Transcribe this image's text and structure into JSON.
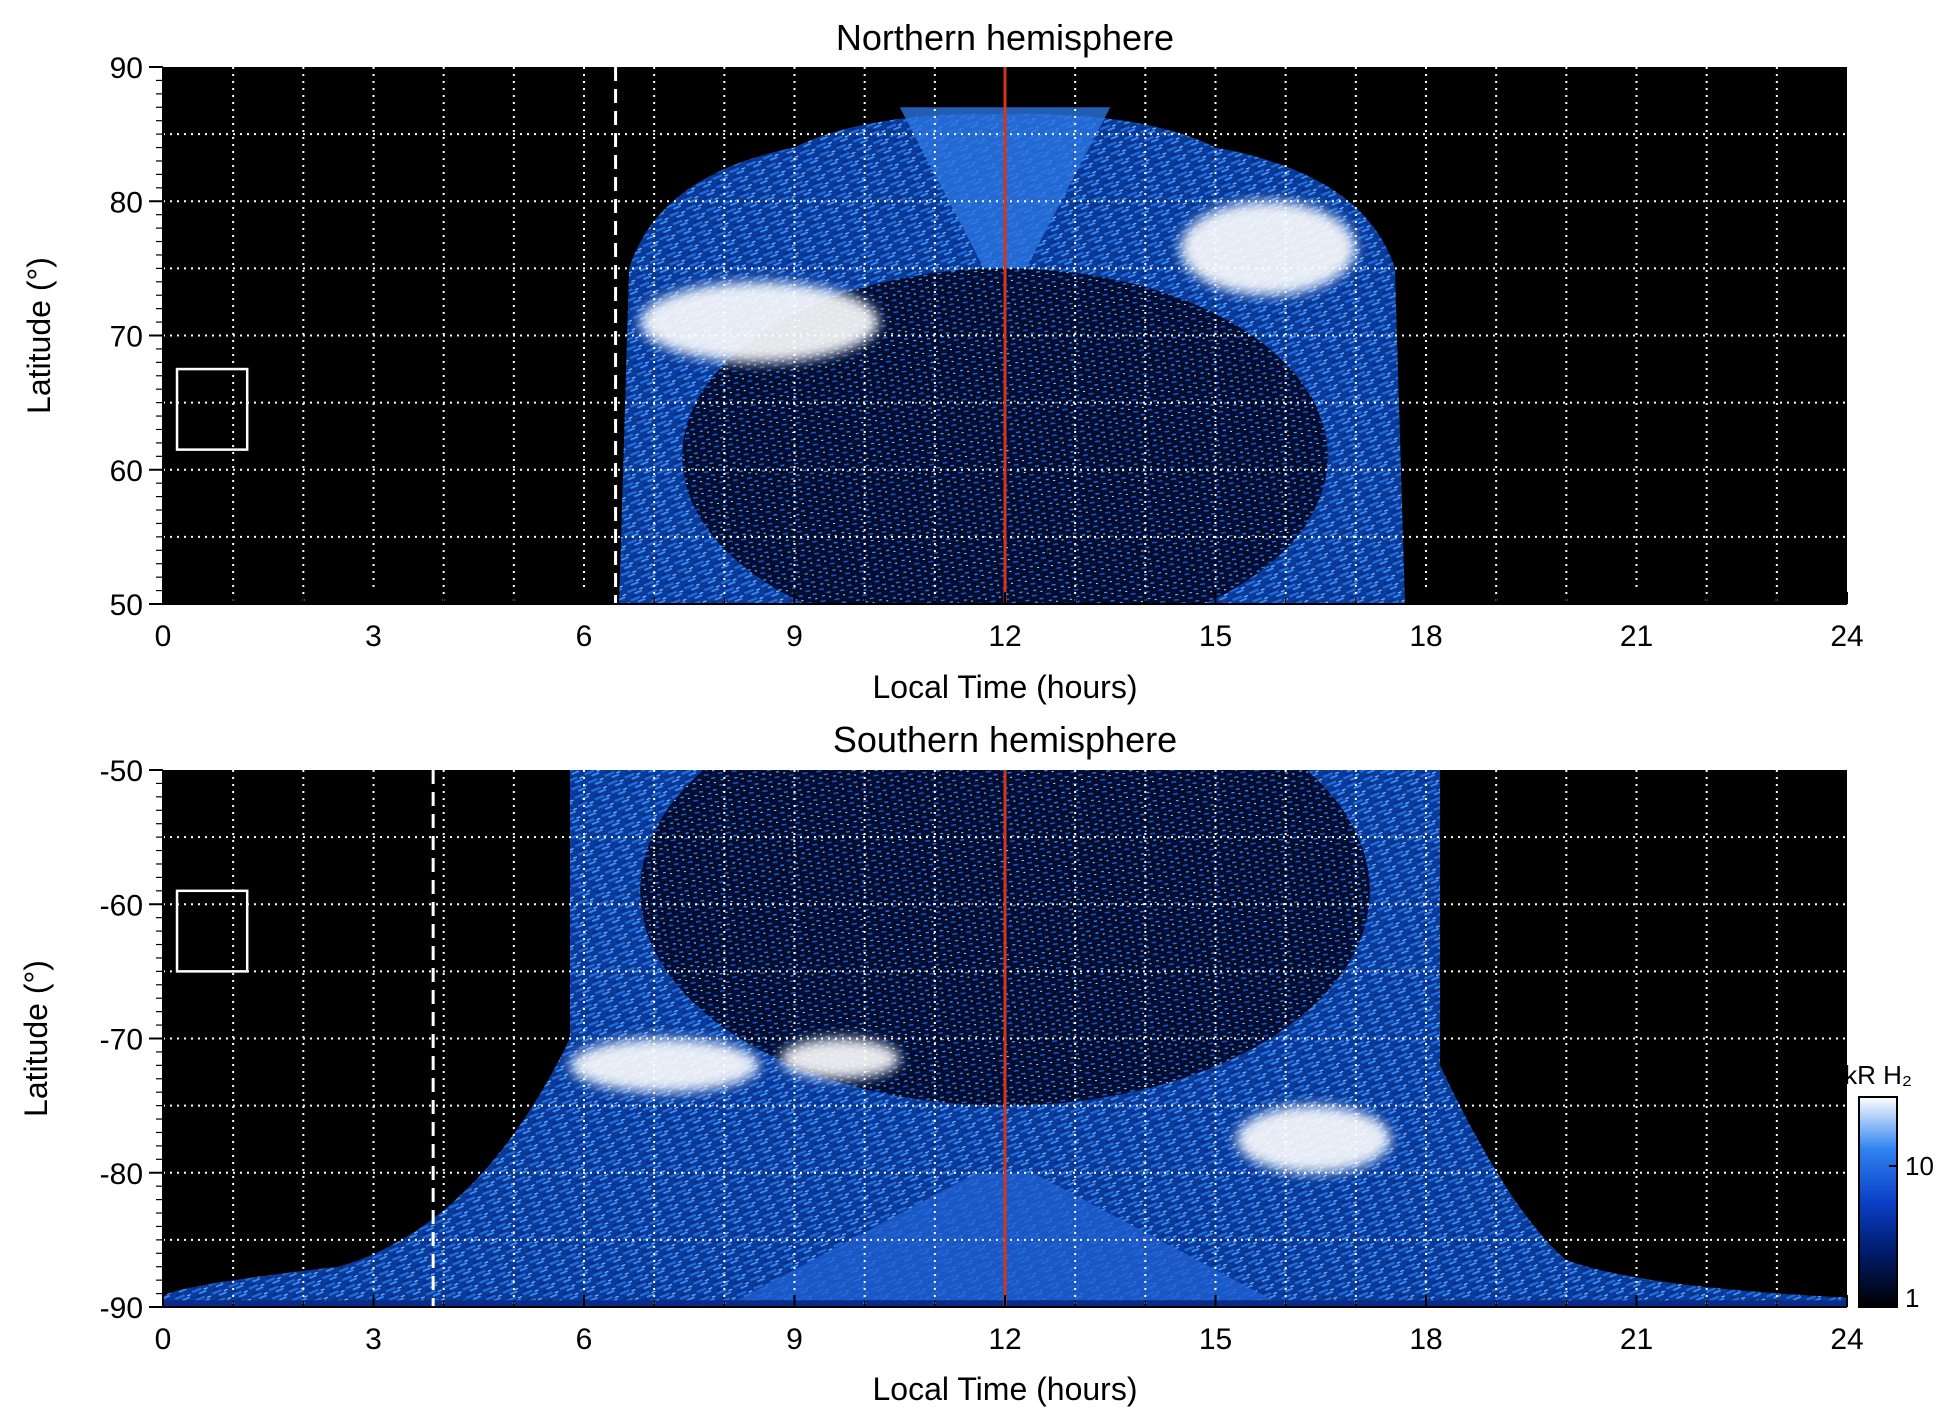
{
  "chart_data": [
    {
      "type": "heatmap",
      "title": "Northern hemisphere",
      "xlabel": "Local Time (hours)",
      "ylabel": "Latitude (°)",
      "xlim": [
        0,
        24
      ],
      "ylim": [
        50,
        90
      ],
      "x_ticks": [
        "0",
        "3",
        "6",
        "9",
        "12",
        "15",
        "18",
        "21",
        "24"
      ],
      "y_ticks": [
        "50",
        "60",
        "70",
        "80",
        "90"
      ],
      "grid": true,
      "noon_line_x": 12,
      "terminator_dashed_x": 6.45,
      "coverage": {
        "lt_start": 6.5,
        "lt_end": 17.7,
        "lat_top": 86.5
      },
      "bright_regions": [
        {
          "lt": [
            6.8,
            10.2
          ],
          "lat": [
            68,
            74
          ]
        },
        {
          "lt": [
            14.5,
            17.0
          ],
          "lat": [
            73,
            80
          ]
        }
      ],
      "auroral_oval": {
        "center_lt": 12,
        "center_lat": 61,
        "radius_lt": 4.6,
        "radius_lat": 14
      },
      "reference_box": {
        "lt": [
          0.2,
          1.2
        ],
        "lat": [
          61.5,
          67.5
        ]
      }
    },
    {
      "type": "heatmap",
      "title": "Southern hemisphere",
      "xlabel": "Local Time (hours)",
      "ylabel": "Latitude (°)",
      "xlim": [
        0,
        24
      ],
      "ylim": [
        -90,
        -50
      ],
      "x_ticks": [
        "0",
        "3",
        "6",
        "9",
        "12",
        "15",
        "18",
        "21",
        "24"
      ],
      "y_ticks": [
        "-50",
        "-60",
        "-70",
        "-80",
        "-90"
      ],
      "grid": true,
      "noon_line_x": 12,
      "terminator_dashed_x": 3.85,
      "coverage": {
        "lt_start": 5.8,
        "lt_end": 18.2,
        "lat_bottom": -90
      },
      "bright_regions": [
        {
          "lt": [
            5.8,
            8.5
          ],
          "lat": [
            -74,
            -70
          ]
        },
        {
          "lt": [
            8.8,
            10.5
          ],
          "lat": [
            -73,
            -70
          ]
        },
        {
          "lt": [
            15.3,
            17.5
          ],
          "lat": [
            -80,
            -75
          ]
        }
      ],
      "auroral_oval": {
        "center_lt": 12,
        "center_lat": -59,
        "radius_lt": 5.2,
        "radius_lat": 16
      },
      "reference_box": {
        "lt": [
          0.2,
          1.2
        ],
        "lat": [
          -65,
          -59
        ]
      }
    }
  ],
  "colorbar": {
    "label": "kR H₂",
    "ticks": [
      "1",
      "10"
    ],
    "scale": "log",
    "range": [
      1,
      30
    ],
    "colors": [
      "#000000",
      "#001a66",
      "#0a3fc7",
      "#2f82f0",
      "#ffffff"
    ]
  }
}
